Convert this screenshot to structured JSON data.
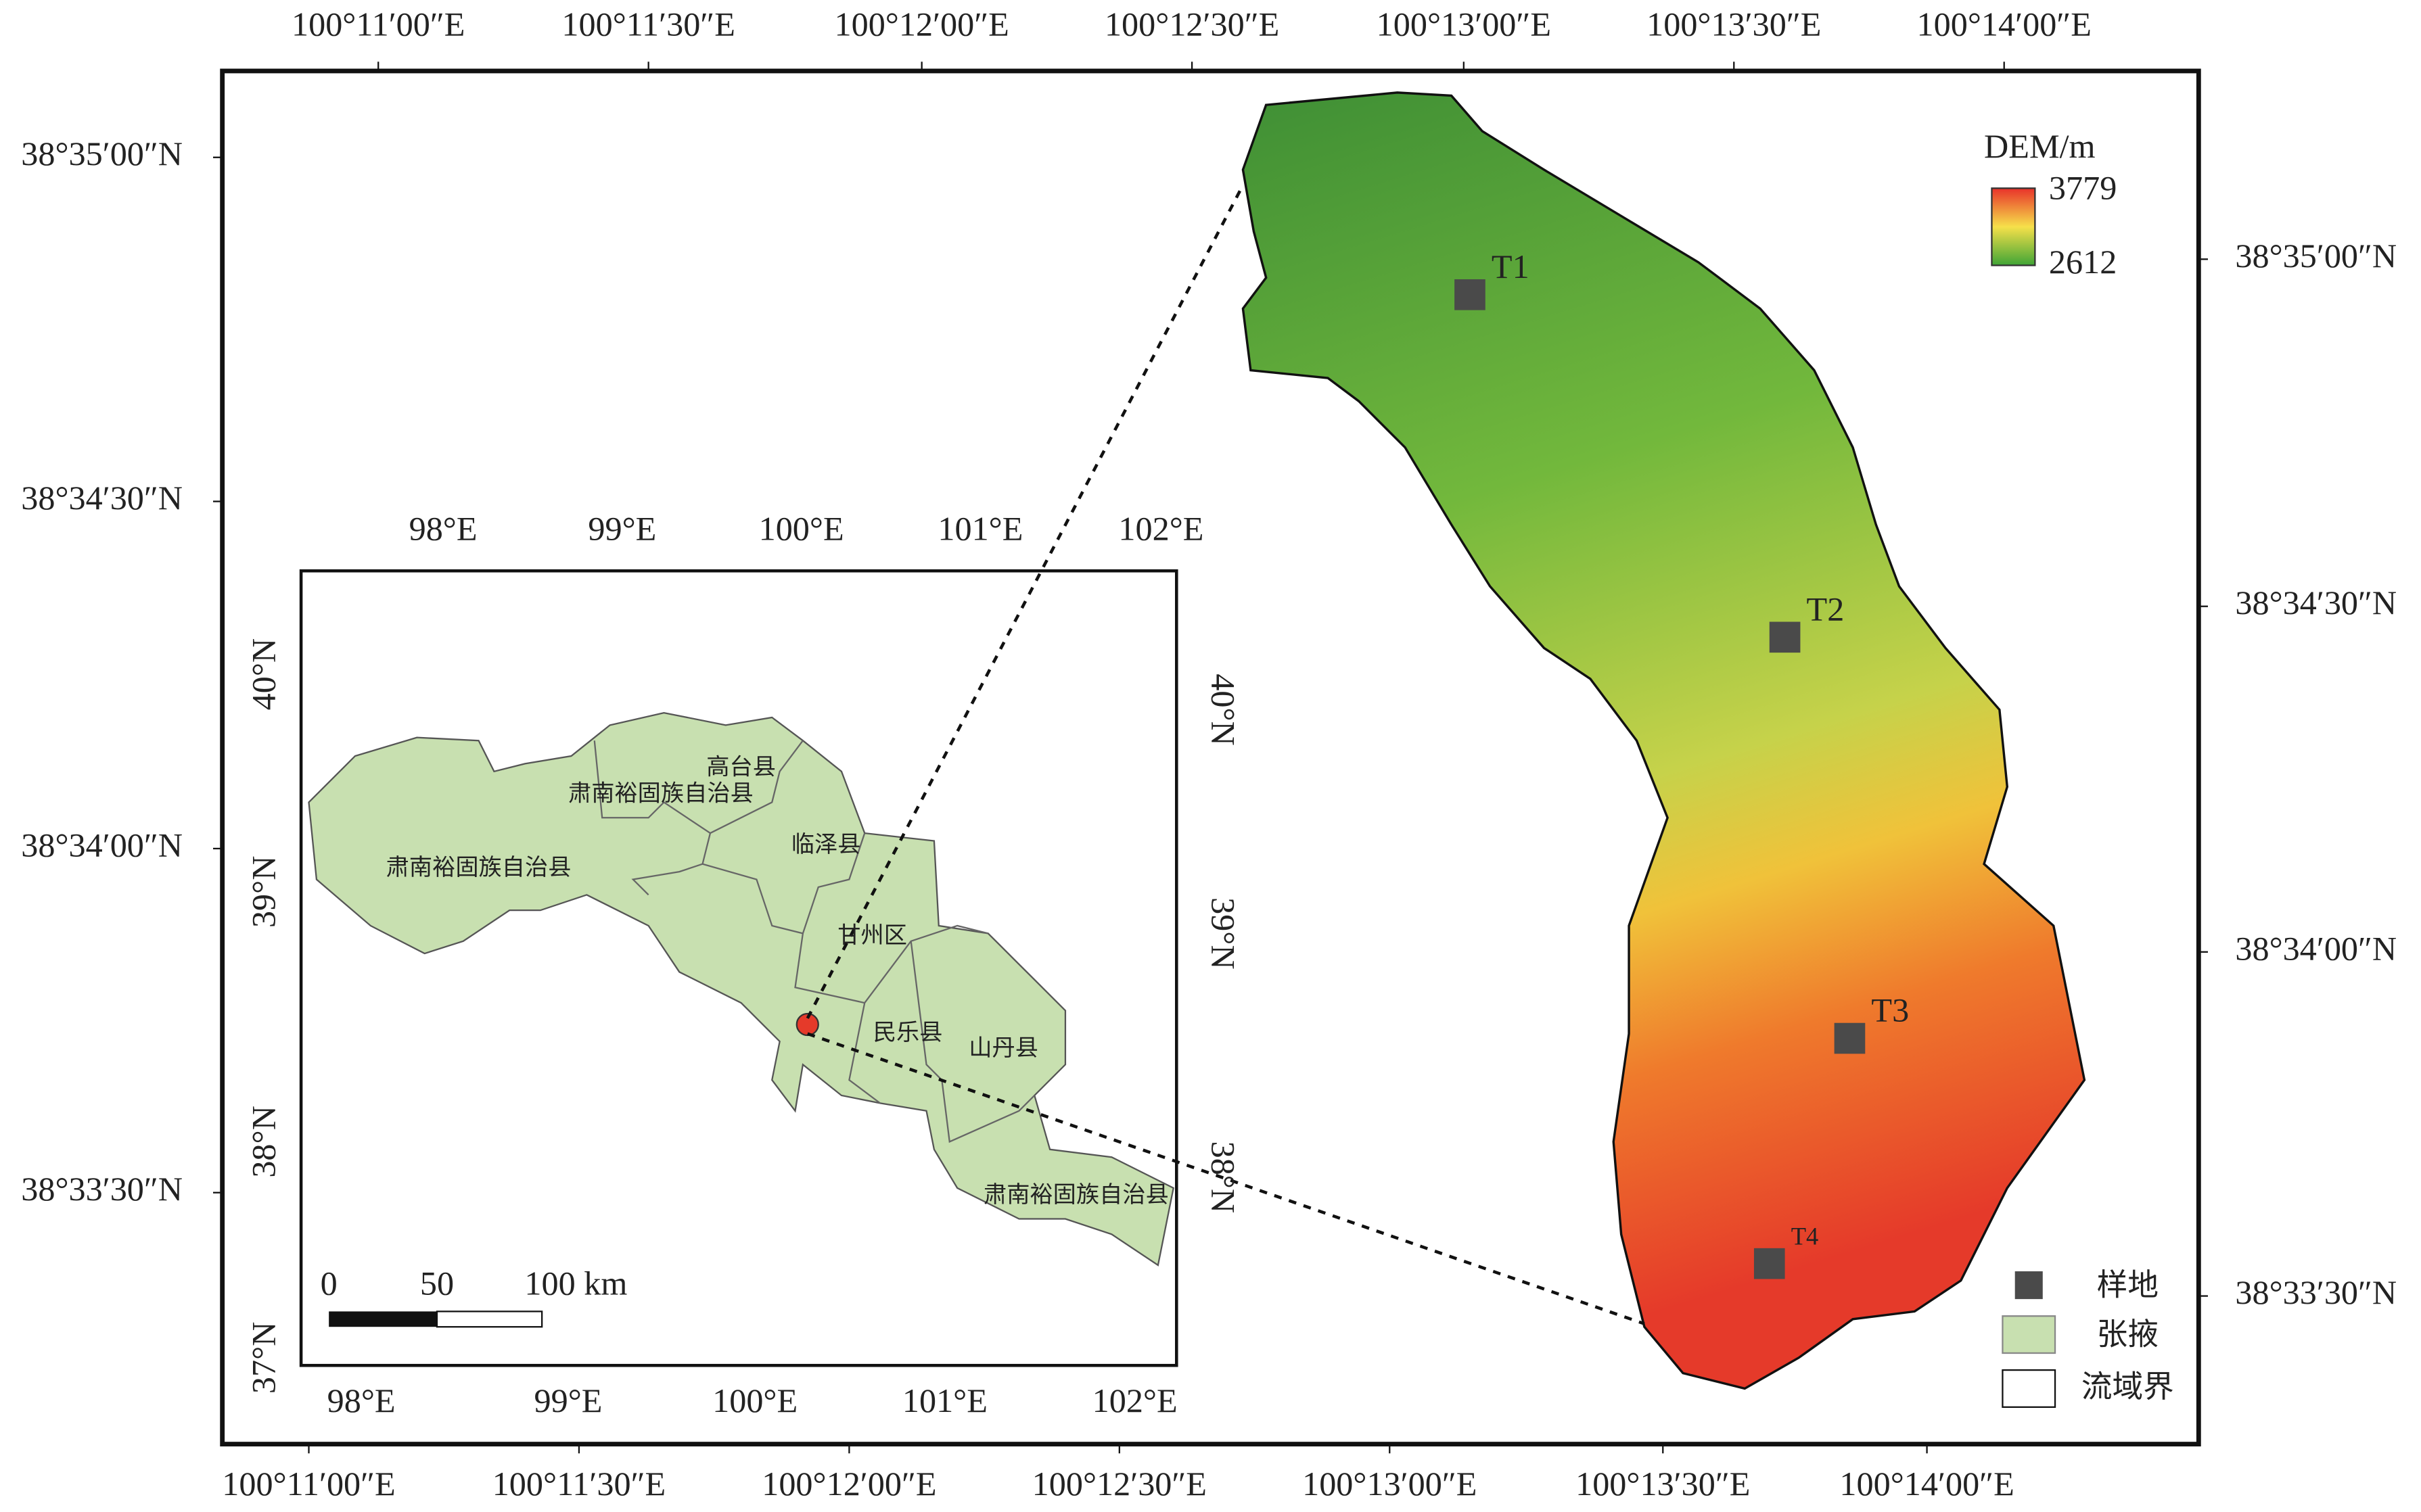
{
  "frame": {
    "top_labels": [
      "100°11′00″E",
      "100°11′30″E",
      "100°12′00″E",
      "100°12′30″E",
      "100°13′00″E",
      "100°13′30″E",
      "100°14′00″E"
    ],
    "bottom_labels": [
      "100°11′00″E",
      "100°11′30″E",
      "100°12′00″E",
      "100°12′30″E",
      "100°13′00″E",
      "100°13′30″E",
      "100°14′00″E"
    ],
    "left_labels": [
      "38°35′00″N",
      "38°34′30″N",
      "38°34′00″N",
      "38°33′30″N"
    ],
    "right_labels": [
      "38°35′00″N",
      "38°34′30″N",
      "38°34′00″N",
      "38°33′30″N"
    ]
  },
  "samples": [
    "T1",
    "T2",
    "T3",
    "T4"
  ],
  "legend": {
    "title": "DEM/m",
    "max": 3779,
    "min": 2612,
    "items": [
      "样地",
      "张掖",
      "流域界"
    ]
  },
  "inset": {
    "top_labels": [
      "98°E",
      "99°E",
      "100°E",
      "101°E",
      "102°E"
    ],
    "bottom_labels": [
      "98°E",
      "99°E",
      "100°E",
      "101°E",
      "102°E"
    ],
    "left_labels": [
      "40°N",
      "39°N",
      "38°N",
      "37°N"
    ],
    "right_labels": [
      "40°N",
      "39°N",
      "38°N"
    ],
    "counties": [
      "高台县",
      "肃南裕固族自治县",
      "临泽县",
      "肃南裕固族自治县",
      "甘州区",
      "民乐县",
      "山丹县",
      "肃南裕固族自治县"
    ],
    "scale_labels": [
      "0",
      "50",
      "100 km"
    ]
  }
}
